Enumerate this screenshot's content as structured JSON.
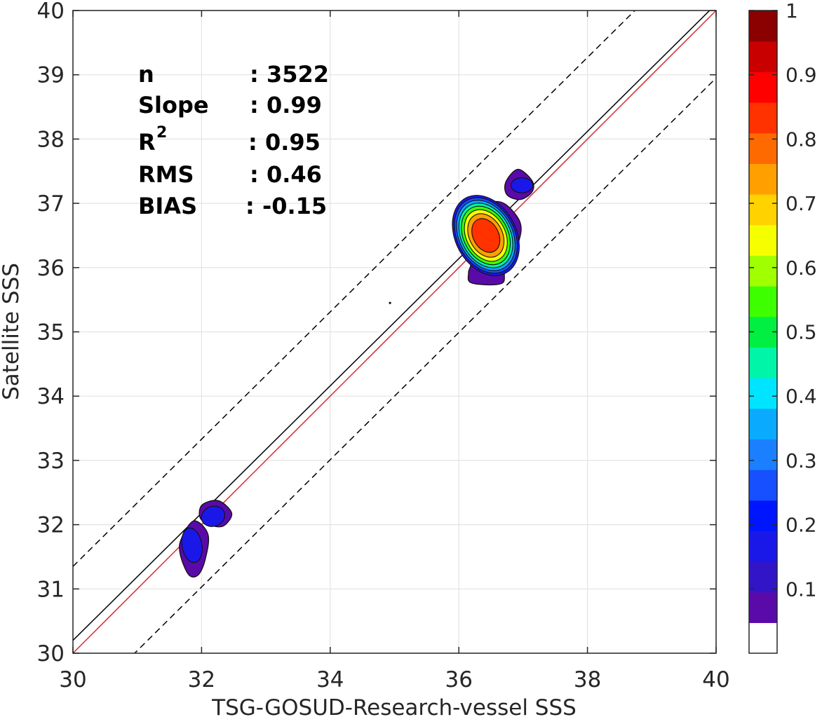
{
  "chart_data": {
    "type": "scatter",
    "subtype": "density-contour",
    "xlabel": "TSG-GOSUD-Research-vessel SSS",
    "ylabel": "Satellite SSS",
    "xlim": [
      30,
      40
    ],
    "ylim": [
      30,
      40
    ],
    "x_ticks": [
      30,
      32,
      34,
      36,
      38,
      40
    ],
    "y_ticks": [
      30,
      31,
      32,
      33,
      34,
      35,
      36,
      37,
      38,
      39,
      40
    ],
    "grid": true,
    "stats": [
      {
        "label": "n",
        "value": ": 3522"
      },
      {
        "label": "Slope",
        "value": ": 0.99"
      },
      {
        "label": "R",
        "sup": "2",
        "value": ": 0.95"
      },
      {
        "label": "RMS",
        "value": ": 0.46"
      },
      {
        "label": "BIAS",
        "value": ": -0.15"
      }
    ],
    "reference_lines": [
      {
        "kind": "regression",
        "color": "#000000",
        "style": "solid",
        "x": [
          30,
          40
        ],
        "y": [
          30.2,
          40.1
        ]
      },
      {
        "kind": "one-to-one",
        "color": "#d62728",
        "style": "solid",
        "x": [
          30,
          40
        ],
        "y": [
          30,
          40
        ]
      },
      {
        "kind": "upper-bound",
        "color": "#000000",
        "style": "dashed",
        "x": [
          30,
          40
        ],
        "y": [
          31.35,
          41.25
        ]
      },
      {
        "kind": "lower-bound",
        "color": "#000000",
        "style": "dashed",
        "x": [
          30,
          40
        ],
        "y": [
          29.05,
          38.95
        ]
      }
    ],
    "density_clusters": [
      {
        "name": "cluster-main",
        "cx": 36.42,
        "cy": 36.5,
        "rx": 0.5,
        "ry": 0.7,
        "rotate": -28,
        "peak": 0.9,
        "outline": [
          [
            36.65,
            37.02
          ],
          [
            36.88,
            36.83
          ],
          [
            36.97,
            36.6
          ],
          [
            36.88,
            36.26
          ],
          [
            36.72,
            35.96
          ],
          [
            36.66,
            35.75
          ],
          [
            36.2,
            35.76
          ],
          [
            36.15,
            35.92
          ],
          [
            36.18,
            36.08
          ],
          [
            36.02,
            36.35
          ],
          [
            35.99,
            36.6
          ],
          [
            36.08,
            36.82
          ],
          [
            36.3,
            36.98
          ]
        ]
      },
      {
        "name": "cluster-upper-small",
        "cx": 36.98,
        "cy": 37.28,
        "rx": 0.22,
        "ry": 0.15,
        "rotate": 0,
        "peak": 0.2,
        "outline": [
          [
            36.92,
            37.53
          ],
          [
            37.14,
            37.35
          ],
          [
            37.14,
            37.18
          ],
          [
            36.96,
            37.06
          ],
          [
            36.75,
            37.13
          ],
          [
            36.73,
            37.33
          ]
        ]
      },
      {
        "name": "cluster-low-right",
        "cx": 32.18,
        "cy": 32.13,
        "rx": 0.24,
        "ry": 0.2,
        "rotate": -20,
        "peak": 0.2,
        "outline": [
          [
            32.22,
            32.38
          ],
          [
            32.38,
            32.3
          ],
          [
            32.47,
            32.15
          ],
          [
            32.34,
            31.98
          ],
          [
            32.15,
            31.99
          ],
          [
            31.98,
            32.1
          ],
          [
            32.0,
            32.3
          ]
        ]
      },
      {
        "name": "cluster-low-left",
        "cx": 31.85,
        "cy": 31.68,
        "rx": 0.2,
        "ry": 0.35,
        "rotate": -10,
        "peak": 0.2,
        "outline": [
          [
            31.88,
            32.06
          ],
          [
            32.1,
            31.85
          ],
          [
            32.06,
            31.47
          ],
          [
            31.95,
            31.22
          ],
          [
            31.8,
            31.22
          ],
          [
            31.67,
            31.53
          ],
          [
            31.68,
            31.77
          ]
        ]
      }
    ],
    "stray_points": [
      {
        "x": 34.93,
        "y": 35.45
      }
    ],
    "colorbar": {
      "ticks": [
        "0.1",
        "0.2",
        "0.3",
        "0.4",
        "0.5",
        "0.6",
        "0.7",
        "0.8",
        "0.9",
        "1"
      ],
      "levels": [
        0.05,
        0.1,
        0.15,
        0.2,
        0.25,
        0.3,
        0.35,
        0.4,
        0.45,
        0.5,
        0.55,
        0.6,
        0.65,
        0.7,
        0.75,
        0.8,
        0.85,
        0.9,
        0.95,
        1.0
      ],
      "colors": [
        "#ffffff",
        "#5a0aa8",
        "#3315c8",
        "#1a18e8",
        "#0015ff",
        "#1750ff",
        "#1a80ff",
        "#0aaaff",
        "#00e5ff",
        "#00f5a8",
        "#00ef42",
        "#3eff00",
        "#a0ff00",
        "#f5ff00",
        "#ffd200",
        "#ffa000",
        "#ff6a00",
        "#ff3200",
        "#ff0000",
        "#c80000",
        "#8b0000"
      ]
    }
  }
}
